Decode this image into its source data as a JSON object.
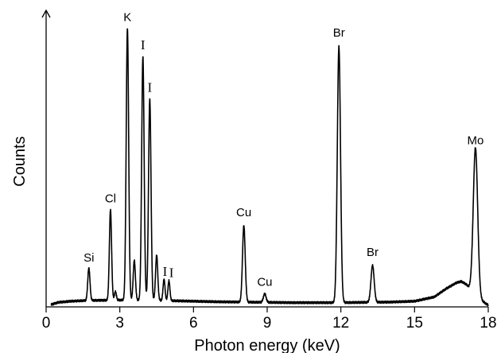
{
  "chart_data": {
    "type": "line",
    "xlabel": "Photon energy (keV)",
    "ylabel": "Counts",
    "xlim": [
      0,
      18
    ],
    "ylim": [
      0,
      1.0
    ],
    "xticks": [
      0,
      3,
      6,
      9,
      12,
      15,
      18
    ],
    "grid": false,
    "series": [
      {
        "background": [
          [
            0.2,
            0.008
          ],
          [
            0.5,
            0.016
          ],
          [
            1.0,
            0.02
          ],
          [
            1.5,
            0.022
          ],
          [
            2.0,
            0.023
          ],
          [
            3.0,
            0.024
          ],
          [
            4.0,
            0.024
          ],
          [
            5.0,
            0.022
          ],
          [
            6.0,
            0.02
          ],
          [
            7.0,
            0.018
          ],
          [
            8.0,
            0.017
          ],
          [
            9.0,
            0.016
          ],
          [
            10.0,
            0.015
          ],
          [
            11.0,
            0.015
          ],
          [
            12.0,
            0.015
          ],
          [
            13.0,
            0.016
          ],
          [
            14.0,
            0.017
          ],
          [
            15.0,
            0.02
          ],
          [
            15.8,
            0.035
          ],
          [
            16.3,
            0.065
          ],
          [
            16.7,
            0.085
          ],
          [
            16.9,
            0.09
          ],
          [
            17.1,
            0.08
          ],
          [
            17.6,
            0.03
          ],
          [
            18.0,
            0.006
          ]
        ],
        "peaks": [
          {
            "x": 1.74,
            "y": 0.115,
            "w": 0.045
          },
          {
            "x": 2.62,
            "y": 0.32,
            "w": 0.045
          },
          {
            "x": 2.82,
            "y": 0.03,
            "w": 0.04
          },
          {
            "x": 3.31,
            "y": 0.96,
            "w": 0.05
          },
          {
            "x": 3.59,
            "y": 0.14,
            "w": 0.045
          },
          {
            "x": 3.94,
            "y": 0.86,
            "w": 0.05
          },
          {
            "x": 4.22,
            "y": 0.71,
            "w": 0.05
          },
          {
            "x": 4.5,
            "y": 0.16,
            "w": 0.045
          },
          {
            "x": 4.8,
            "y": 0.075,
            "w": 0.04
          },
          {
            "x": 5.0,
            "y": 0.07,
            "w": 0.04
          },
          {
            "x": 8.05,
            "y": 0.27,
            "w": 0.055
          },
          {
            "x": 8.9,
            "y": 0.03,
            "w": 0.055
          },
          {
            "x": 11.92,
            "y": 0.905,
            "w": 0.065
          },
          {
            "x": 13.29,
            "y": 0.13,
            "w": 0.065
          },
          {
            "x": 17.48,
            "y": 0.52,
            "w": 0.09
          }
        ]
      }
    ],
    "annotations": [
      {
        "text": "Si",
        "x": 1.74,
        "y": 0.16,
        "style": "sans"
      },
      {
        "text": "Cl",
        "x": 2.62,
        "y": 0.37,
        "style": "sans"
      },
      {
        "text": "K",
        "x": 3.31,
        "y": 1.01,
        "style": "sans"
      },
      {
        "text": "I",
        "x": 3.94,
        "y": 0.91,
        "style": "serif"
      },
      {
        "text": "I",
        "x": 4.22,
        "y": 0.76,
        "style": "serif"
      },
      {
        "text": "I",
        "x": 4.84,
        "y": 0.11,
        "style": "serif"
      },
      {
        "text": "I",
        "x": 5.1,
        "y": 0.105,
        "style": "serif"
      },
      {
        "text": "Cu",
        "x": 8.05,
        "y": 0.32,
        "style": "sans"
      },
      {
        "text": "Cu",
        "x": 8.9,
        "y": 0.075,
        "style": "sans"
      },
      {
        "text": "Br",
        "x": 11.92,
        "y": 0.955,
        "style": "sans"
      },
      {
        "text": "Br",
        "x": 13.29,
        "y": 0.18,
        "style": "sans"
      },
      {
        "text": "Mo",
        "x": 17.48,
        "y": 0.575,
        "style": "sans"
      }
    ]
  }
}
